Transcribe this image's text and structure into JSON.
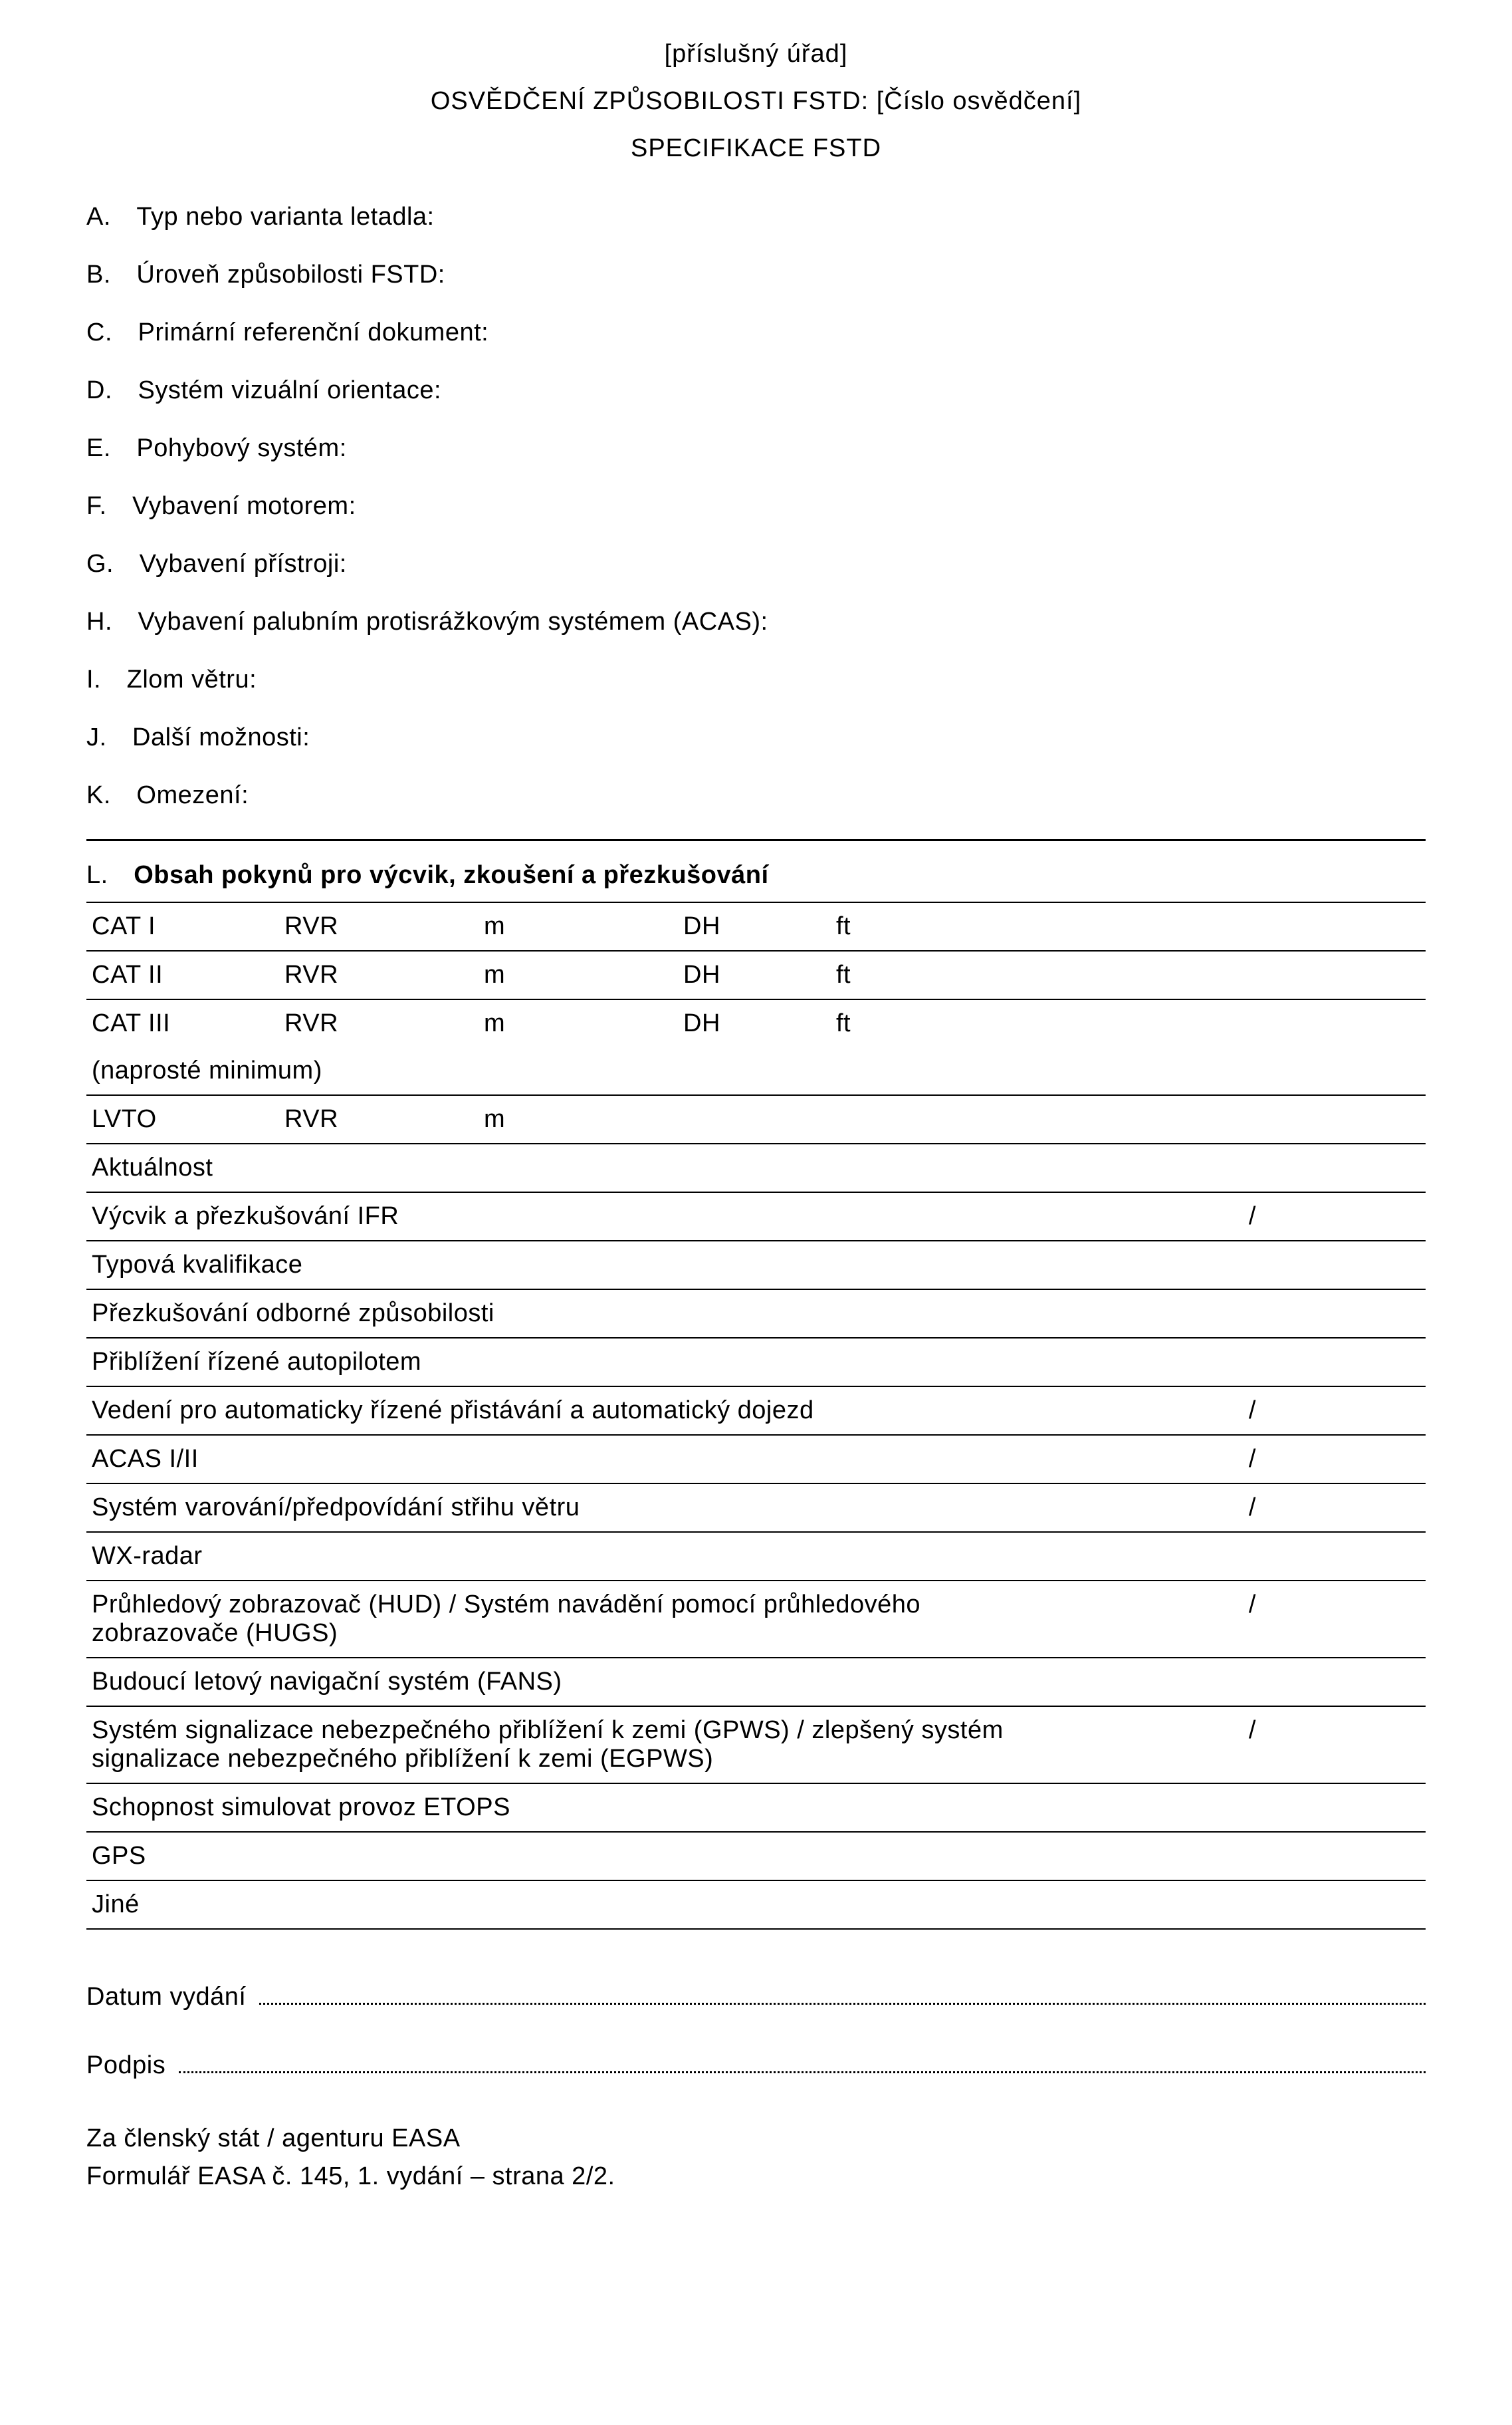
{
  "header": {
    "authority": "[příslušný úřad]",
    "cert_line": "OSVĚDČENÍ ZPŮSOBILOSTI FSTD: [Číslo osvědčení]",
    "spec_line": "SPECIFIKACE FSTD"
  },
  "items": {
    "a": "A. Typ nebo varianta letadla:",
    "b": "B. Úroveň způsobilosti FSTD:",
    "c": "C. Primární referenční dokument:",
    "d": "D. Systém vizuální orientace:",
    "e": "E. Pohybový systém:",
    "f": "F. Vybavení motorem:",
    "g": "G. Vybavení přístroji:",
    "h": "H. Vybavení palubním protisrážkovým systémem (ACAS):",
    "i": "I. Zlom větru:",
    "j": "J. Další možnosti:",
    "k": "K. Omezení:"
  },
  "sectionL": {
    "prefix": "L. ",
    "title": "Obsah pokynů pro výcvik, zkoušení a přezkušování"
  },
  "catRows": [
    {
      "label": "CAT I",
      "rvr": "RVR",
      "m": "m",
      "dh": "DH",
      "ft": "ft"
    },
    {
      "label": "CAT II",
      "rvr": "RVR",
      "m": "m",
      "dh": "DH",
      "ft": "ft"
    },
    {
      "label": "CAT III",
      "rvr": "RVR",
      "m": "m",
      "dh": "DH",
      "ft": "ft"
    }
  ],
  "minimumNote": "(naprosté minimum)",
  "lvtoRow": {
    "label": "LVTO",
    "rvr": "RVR",
    "m": "m"
  },
  "rows": [
    {
      "text": "Aktuálnost",
      "slash": ""
    },
    {
      "text": "Výcvik a přezkušování IFR",
      "slash": "/"
    },
    {
      "text": "Typová kvalifikace",
      "slash": ""
    },
    {
      "text": "Přezkušování odborné způsobilosti",
      "slash": ""
    },
    {
      "text": "Přiblížení řízené autopilotem",
      "slash": ""
    },
    {
      "text": "Vedení pro automaticky řízené přistávání a automatický dojezd",
      "slash": "/"
    },
    {
      "text": "ACAS I/II",
      "slash": "/"
    },
    {
      "text": "Systém varování/předpovídání střihu větru",
      "slash": "/"
    },
    {
      "text": "WX-radar",
      "slash": ""
    },
    {
      "text": "Průhledový zobrazovač (HUD) / Systém navádění pomocí průhledového zobrazovače (HUGS)",
      "slash": "/"
    },
    {
      "text": "Budoucí letový navigační systém (FANS)",
      "slash": ""
    },
    {
      "text": "Systém signalizace nebezpečného přiblížení k zemi (GPWS) / zlepšený systém signalizace nebezpečného přiblížení k zemi (EGPWS)",
      "slash": "/"
    },
    {
      "text": "Schopnost simulovat provoz ETOPS",
      "slash": ""
    },
    {
      "text": "GPS",
      "slash": ""
    },
    {
      "text": "Jiné",
      "slash": ""
    }
  ],
  "footer": {
    "date_label": "Datum vydání",
    "signature_label": "Podpis",
    "line1": "Za členský stát / agenturu EASA",
    "line2": "Formulář EASA č. 145, 1. vydání – strana 2/2."
  }
}
